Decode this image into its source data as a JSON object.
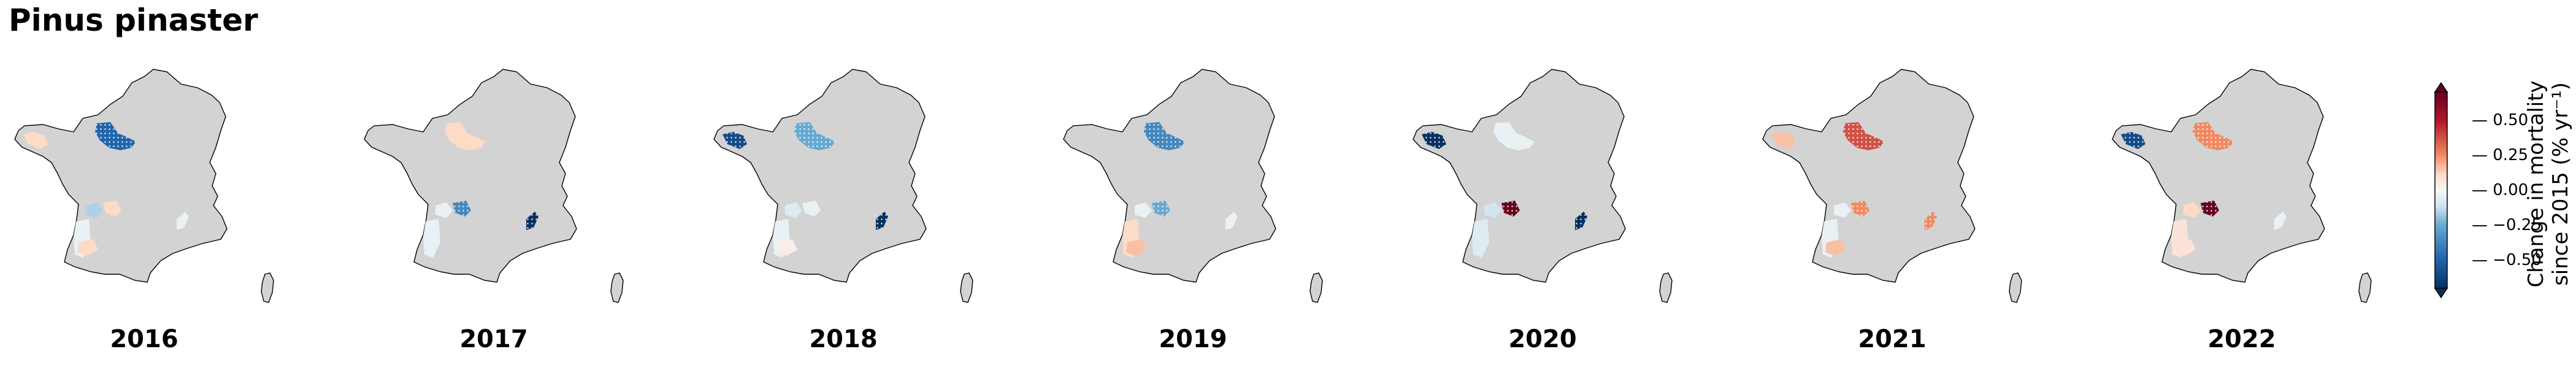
{
  "title": "Pinus pinaster",
  "colorbar": {
    "label_line1": "Change in mortality",
    "label_line2": "since 2015 (% yr⁻¹)",
    "ticks": [
      "0.50",
      "0.25",
      "0.00",
      "−0.25",
      "−0.50"
    ],
    "tick_values": [
      0.5,
      0.25,
      0.0,
      -0.25,
      -0.5
    ],
    "range": [
      -0.7,
      0.7
    ],
    "cmap": "RdBu_r"
  },
  "colors": {
    "land": "#d3d3d3",
    "hatch": "#ffffff"
  },
  "panels": [
    {
      "year": "2016",
      "regions": {
        "brittany": 0.15,
        "center": -0.5,
        "loire": -0.2,
        "landes": -0.05,
        "south": 0.15,
        "alps": -0.05,
        "poitou": 0.15
      }
    },
    {
      "year": "2017",
      "regions": {
        "center": 0.15,
        "loire": -0.05,
        "poitou": -0.4,
        "landes": -0.05,
        "alps": -0.7
      }
    },
    {
      "year": "2018",
      "regions": {
        "brittany": -0.6,
        "center": -0.3,
        "loire": -0.1,
        "poitou": -0.05,
        "landes": -0.05,
        "south": 0.05,
        "alps": -0.7
      }
    },
    {
      "year": "2019",
      "regions": {
        "center": -0.4,
        "loire": -0.05,
        "poitou": -0.3,
        "landes": 0.15,
        "south": 0.2,
        "alps": -0.05
      }
    },
    {
      "year": "2020",
      "regions": {
        "brittany": -0.7,
        "center": -0.05,
        "loire": -0.15,
        "poitou": 0.7,
        "landes": -0.1,
        "alps": -0.7
      }
    },
    {
      "year": "2021",
      "regions": {
        "brittany": 0.2,
        "center": 0.4,
        "loire": -0.05,
        "poitou": 0.3,
        "landes": -0.05,
        "south": 0.2,
        "alps": 0.3
      }
    },
    {
      "year": "2022",
      "regions": {
        "brittany": -0.6,
        "center": 0.3,
        "loire": 0.15,
        "poitou": 0.7,
        "landes": 0.1,
        "south": 0.1,
        "alps": -0.05
      }
    }
  ]
}
